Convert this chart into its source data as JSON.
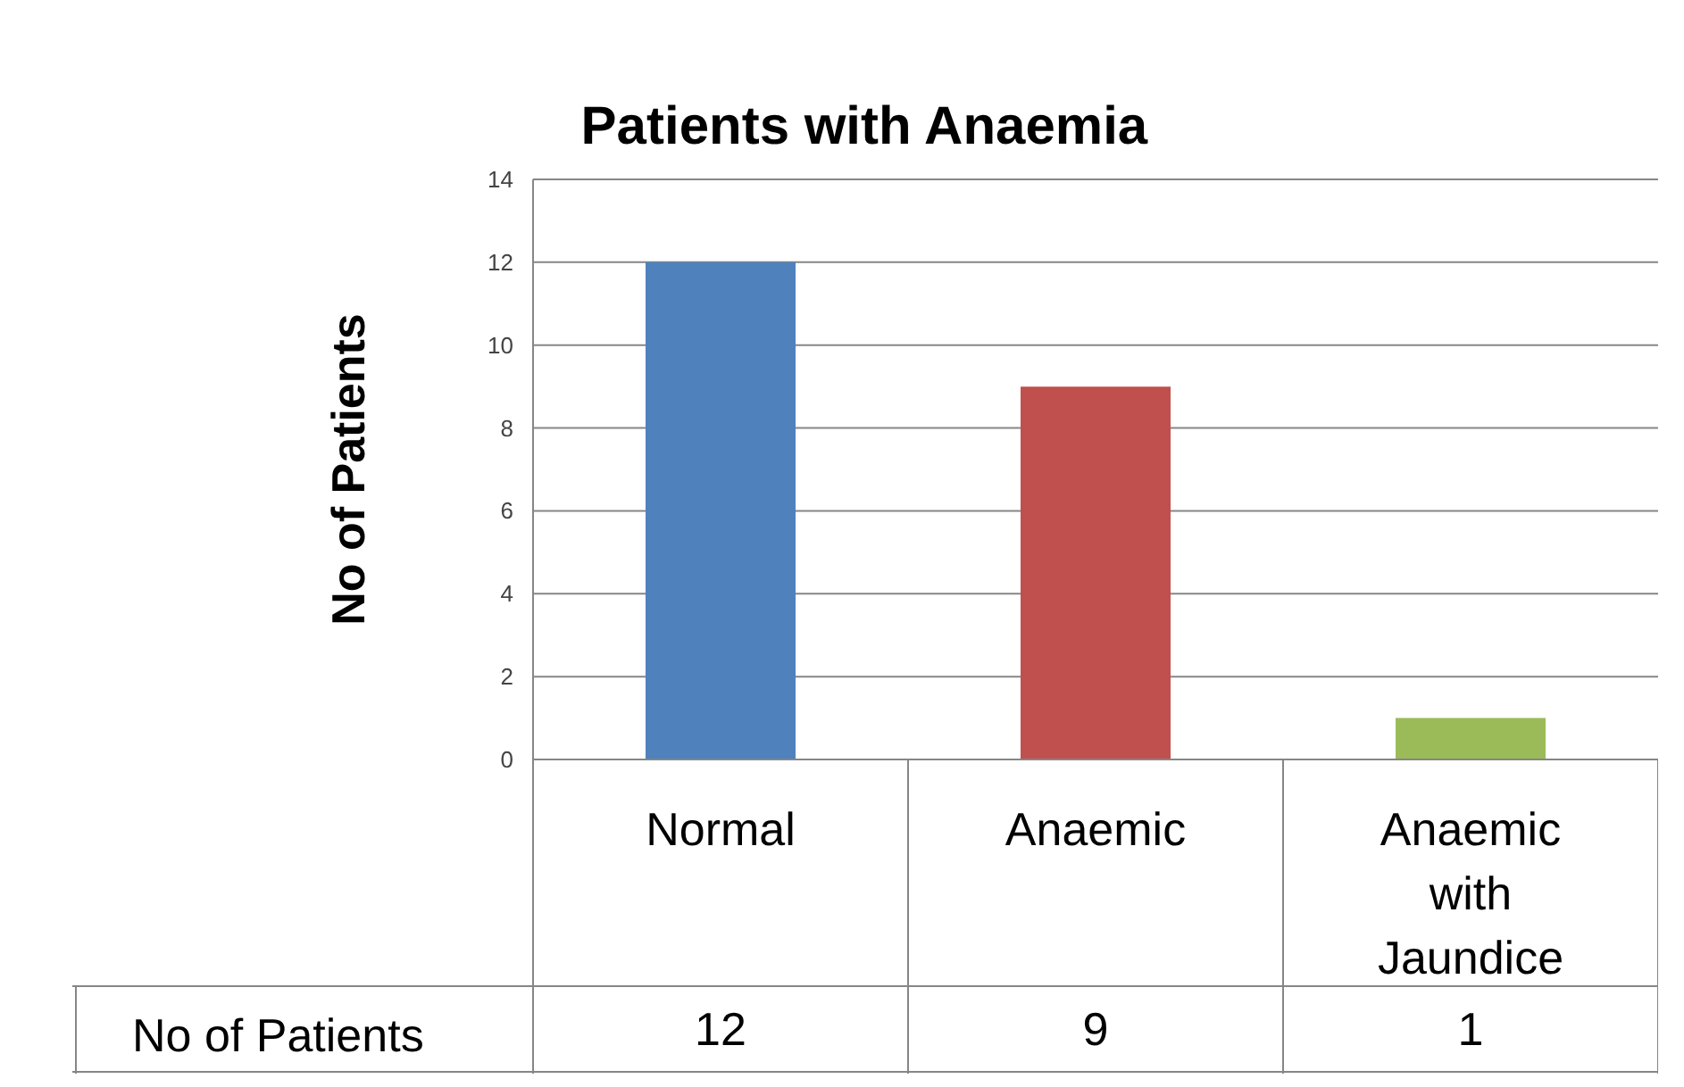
{
  "chart_data": {
    "type": "bar",
    "title": "Patients with Anaemia",
    "ylabel": "No of Patients",
    "categories": [
      "Normal",
      "Anaemic",
      "Anaemic with Jaundice"
    ],
    "series": [
      {
        "name": "No of Patients",
        "colors": [
          "#4f81bd",
          "#c0504d",
          "#9bbb59"
        ],
        "values": [
          12,
          9,
          1
        ]
      }
    ],
    "ylim": [
      0,
      14
    ],
    "yticks": [
      0,
      2,
      4,
      6,
      8,
      10,
      12,
      14
    ],
    "grid": "y",
    "legend": "bottom",
    "data_labels": true
  }
}
